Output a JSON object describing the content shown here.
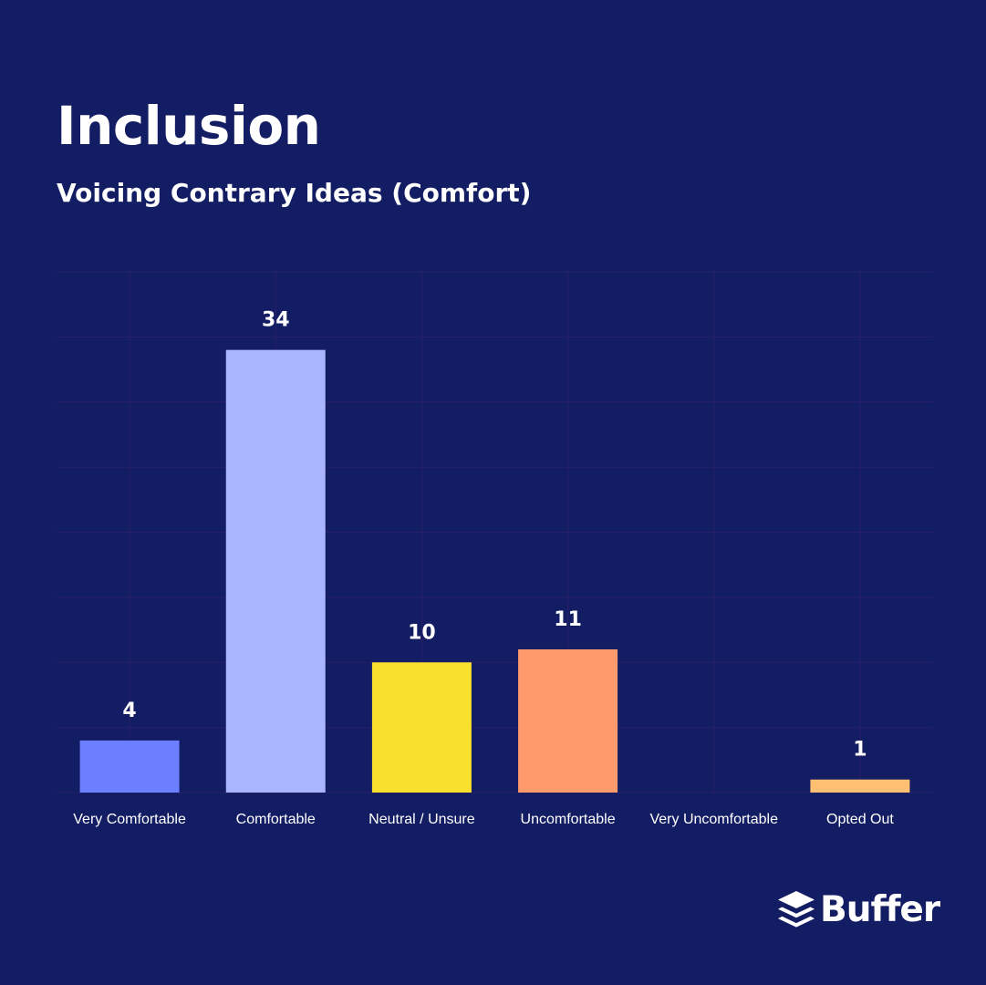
{
  "header": {
    "title": "Inclusion",
    "subtitle": "Voicing Contrary Ideas (Comfort)"
  },
  "brand": {
    "name": "Buffer",
    "icon": "buffer-stack-icon"
  },
  "colors": {
    "background": "#131d63",
    "grid": "#2a1f6b",
    "text": "#ffffff"
  },
  "chart_data": {
    "type": "bar",
    "title": "Voicing Contrary Ideas (Comfort)",
    "xlabel": "",
    "ylabel": "",
    "ylim": [
      0,
      40
    ],
    "grid": true,
    "legend": "none",
    "categories": [
      "Very Comfortable",
      "Comfortable",
      "Neutral / Unsure",
      "Uncomfortable",
      "Very Uncomfortable",
      "Opted Out"
    ],
    "values": [
      4,
      34,
      10,
      11,
      0,
      1
    ],
    "data_labels": [
      "4",
      "34",
      "10",
      "11",
      "",
      "1"
    ],
    "bar_colors": [
      "#6b7fff",
      "#aab5ff",
      "#f9df2e",
      "#ff9a6c",
      "#f2a8f0",
      "#ffbf73"
    ]
  }
}
